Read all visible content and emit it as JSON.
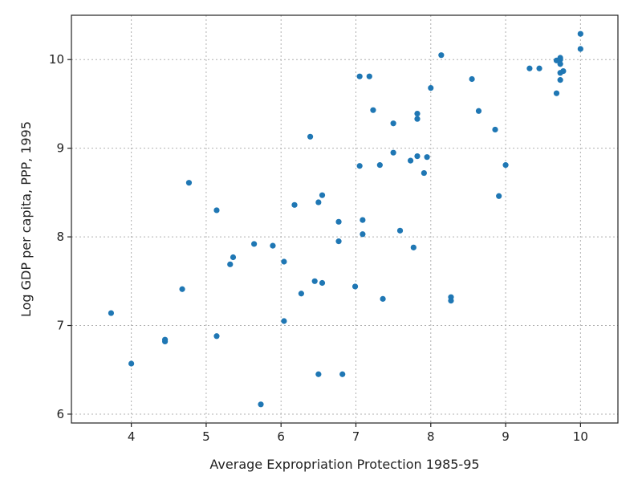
{
  "chart_data": {
    "type": "scatter",
    "title": "",
    "xlabel": "Average Expropriation Protection 1985-95",
    "ylabel": "Log GDP per capita, PPP, 1995",
    "xlim": [
      3.2,
      10.5
    ],
    "ylim": [
      5.9,
      10.5
    ],
    "xticks": [
      4,
      5,
      6,
      7,
      8,
      9,
      10
    ],
    "yticks": [
      6,
      7,
      8,
      9,
      10
    ],
    "grid": true,
    "marker_color": "#1f77b4",
    "series": [
      {
        "x": [
          3.73,
          4.0,
          4.45,
          4.45,
          4.68,
          4.77,
          5.14,
          5.14,
          5.32,
          5.36,
          5.64,
          5.89,
          6.04,
          6.04,
          6.18,
          6.27,
          6.39,
          6.45,
          6.5,
          6.5,
          6.55,
          6.55,
          5.73,
          6.77,
          6.77,
          6.82,
          6.99,
          7.05,
          7.05,
          7.09,
          7.09,
          7.18,
          7.23,
          7.32,
          7.36,
          7.5,
          7.5,
          7.59,
          7.73,
          7.77,
          7.82,
          7.82,
          7.82,
          7.91,
          7.95,
          8.0,
          8.14,
          8.27,
          8.27,
          8.55,
          8.64,
          8.86,
          8.91,
          9.0,
          9.32,
          9.45,
          9.68,
          9.68,
          9.73,
          9.73,
          9.73,
          9.73,
          9.73,
          9.77,
          10.0,
          10.0
        ],
        "y": [
          7.14,
          6.57,
          6.82,
          6.84,
          7.41,
          8.61,
          6.88,
          8.3,
          7.69,
          7.77,
          7.92,
          7.9,
          7.72,
          7.05,
          8.36,
          7.36,
          9.13,
          7.5,
          6.45,
          8.39,
          7.48,
          8.47,
          6.11,
          8.17,
          7.95,
          6.45,
          7.44,
          9.81,
          8.8,
          8.19,
          8.03,
          9.81,
          9.43,
          8.81,
          7.3,
          9.28,
          8.95,
          8.07,
          8.86,
          7.88,
          9.39,
          9.33,
          8.91,
          8.72,
          8.9,
          9.68,
          10.05,
          7.32,
          7.28,
          9.78,
          9.42,
          9.21,
          8.46,
          8.81,
          9.9,
          9.9,
          9.99,
          9.62,
          10.02,
          10.0,
          9.95,
          9.85,
          9.77,
          9.87,
          10.29,
          10.12
        ]
      }
    ]
  }
}
